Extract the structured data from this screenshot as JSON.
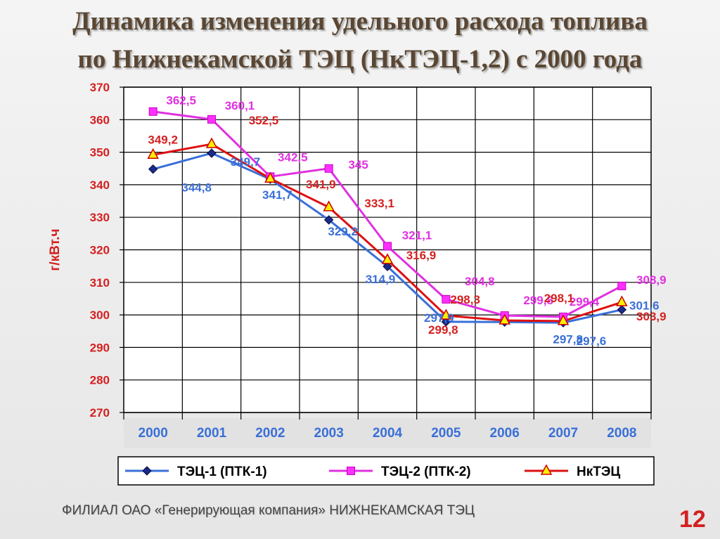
{
  "title_line1": "Динамика изменения удельного расхода топлива",
  "title_line2": "по Нижнекамской ТЭЦ (НкТЭЦ-1,2) с 2000 года",
  "footer": "ФИЛИАЛ ОАО «Генерирующая компания» НИЖНЕКАМСКАЯ ТЭЦ",
  "page_number": "12",
  "chart_data": {
    "type": "line",
    "title": "",
    "xlabel": "",
    "ylabel": "г/кВт.ч",
    "ylim": [
      270,
      370
    ],
    "yticks": [
      270,
      280,
      290,
      300,
      310,
      320,
      330,
      340,
      350,
      360,
      370
    ],
    "grid": true,
    "legend_position": "bottom",
    "categories": [
      "2000",
      "2001",
      "2002",
      "2003",
      "2004",
      "2005",
      "2006",
      "2007",
      "2008"
    ],
    "series": [
      {
        "name": "ТЭЦ-1 (ПТК-1)",
        "color": "#3a6fd8",
        "marker": "diamond",
        "marker_color": "#1a2a8a",
        "values": [
          344.8,
          349.7,
          341.7,
          329.2,
          314.9,
          297.9,
          297.8,
          297.6,
          301.6
        ],
        "labels": [
          "344,8",
          "349,7",
          "341,7",
          "329,2",
          "314,9",
          "297,9",
          "297,8",
          "297,6",
          "301,6"
        ]
      },
      {
        "name": "ТЭЦ-2 (ПТК-2)",
        "color": "#e030e0",
        "marker": "square",
        "marker_color": "#ff30ff",
        "values": [
          362.5,
          360.1,
          342.5,
          345,
          321.1,
          304.8,
          299.8,
          299.4,
          308.9
        ],
        "labels": [
          "362,5",
          "360,1",
          "342,5",
          "345",
          "321,1",
          "304,8",
          "299,8",
          "299,4",
          "308,9"
        ]
      },
      {
        "name": "НкТЭЦ",
        "color": "#dd1111",
        "marker": "triangle",
        "marker_color": "#ffee00",
        "values": [
          349.2,
          352.5,
          341.9,
          333.1,
          316.9,
          299.8,
          298.3,
          298.1,
          303.9
        ],
        "labels": [
          "349,2",
          "352,5",
          "341,9",
          "333,1",
          "316,9",
          "299,8",
          "298,3",
          "298,1",
          "303,9"
        ]
      }
    ]
  }
}
